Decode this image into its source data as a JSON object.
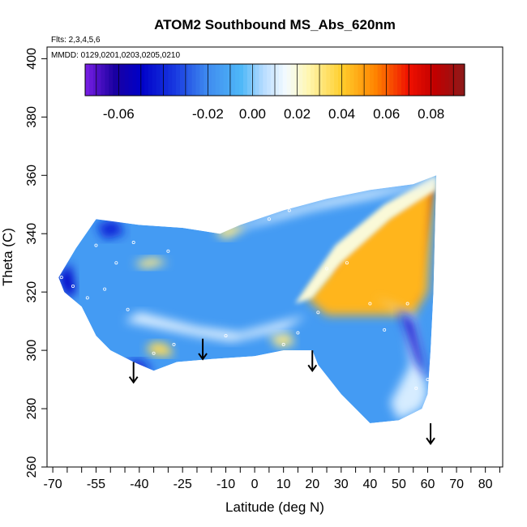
{
  "chart_data": {
    "type": "heatmap",
    "title": "ATOM2 Southbound MS_Abs_620nm",
    "flights_note": "Flts: 2,3,4,5,6",
    "dates_note": "MMDD: 0129,0201,0203,0205,0210",
    "xlabel": "Latitude (deg N)",
    "ylabel": "Theta (C)",
    "xlim": [
      -72,
      86
    ],
    "ylim": [
      260,
      404
    ],
    "x_ticks": [
      -70,
      -55,
      -40,
      -25,
      -10,
      0,
      10,
      20,
      30,
      40,
      50,
      60,
      70,
      80
    ],
    "x_tick_labels": [
      "-70",
      "-55",
      "-40",
      "-25",
      "-10",
      "0",
      "10",
      "20",
      "30",
      "40",
      "50",
      "60",
      "70",
      "80"
    ],
    "x_minor_ticks": [
      -65,
      -60,
      -50,
      -45,
      -35,
      -30,
      -20,
      -15,
      -5,
      5,
      15,
      25,
      35,
      45,
      55,
      65,
      75,
      85
    ],
    "y_ticks": [
      260,
      280,
      300,
      320,
      340,
      360,
      380,
      400
    ],
    "y_tick_labels": [
      "260",
      "280",
      "300",
      "320",
      "340",
      "360",
      "380",
      "400"
    ],
    "colorbar": {
      "range": [
        -0.075,
        0.095
      ],
      "ticks": [
        -0.06,
        -0.02,
        0.0,
        0.02,
        0.04,
        0.06,
        0.08
      ],
      "tick_labels": [
        "-0.06",
        "-0.02",
        "0.00",
        "0.02",
        "0.04",
        "0.06",
        "0.08"
      ],
      "stops": [
        {
          "v": -0.075,
          "color": "#7a1fe6"
        },
        {
          "v": -0.062,
          "color": "#1b00a0"
        },
        {
          "v": -0.05,
          "color": "#0000c8"
        },
        {
          "v": -0.035,
          "color": "#1838e0"
        },
        {
          "v": -0.02,
          "color": "#3f8cf0"
        },
        {
          "v": -0.005,
          "color": "#4fb8f8"
        },
        {
          "v": 0.005,
          "color": "#b8dcff"
        },
        {
          "v": 0.015,
          "color": "#f4fbff"
        },
        {
          "v": 0.025,
          "color": "#fff6b0"
        },
        {
          "v": 0.04,
          "color": "#ffce2c"
        },
        {
          "v": 0.055,
          "color": "#ff8400"
        },
        {
          "v": 0.07,
          "color": "#f01000"
        },
        {
          "v": 0.082,
          "color": "#c00000"
        },
        {
          "v": 0.095,
          "color": "#8c1a1a"
        }
      ]
    },
    "colors": {
      "background": "#2e86f0",
      "positive_core": "#d80000",
      "positive_edge": "#ffb000",
      "neutral": "#eaf6ff",
      "negative": "#0a10c8"
    },
    "data_region": [
      [
        -68,
        325
      ],
      [
        -65,
        330
      ],
      [
        -62,
        335
      ],
      [
        -55,
        345
      ],
      [
        -40,
        343
      ],
      [
        -25,
        342
      ],
      [
        -12,
        340
      ],
      [
        -5,
        343
      ],
      [
        10,
        348
      ],
      [
        25,
        352
      ],
      [
        40,
        355
      ],
      [
        55,
        357
      ],
      [
        63,
        360
      ],
      [
        62,
        320
      ],
      [
        61,
        300
      ],
      [
        60,
        285
      ],
      [
        58,
        280
      ],
      [
        50,
        276
      ],
      [
        40,
        275
      ],
      [
        30,
        285
      ],
      [
        22,
        295
      ],
      [
        20,
        300
      ],
      [
        10,
        300
      ],
      [
        0,
        298
      ],
      [
        -15,
        297
      ],
      [
        -27,
        296
      ],
      [
        -35,
        293
      ],
      [
        -42,
        296
      ],
      [
        -50,
        300
      ],
      [
        -55,
        305
      ],
      [
        -60,
        315
      ],
      [
        -66,
        320
      ]
    ],
    "features": [
      {
        "type": "base",
        "value": -0.015
      },
      {
        "type": "high",
        "value": 0.09,
        "polygon": [
          [
            27,
            328
          ],
          [
            45,
            343
          ],
          [
            62,
            357
          ],
          [
            58,
            330
          ],
          [
            56,
            318
          ],
          [
            50,
            315
          ],
          [
            40,
            316
          ],
          [
            30,
            318
          ]
        ]
      },
      {
        "type": "band",
        "value": 0.045,
        "polygon": [
          [
            18,
            318
          ],
          [
            30,
            333
          ],
          [
            46,
            347
          ],
          [
            62,
            357
          ],
          [
            60,
            320
          ],
          [
            55,
            312
          ],
          [
            40,
            312
          ],
          [
            25,
            312
          ]
        ]
      },
      {
        "type": "rim",
        "value": 0.02,
        "polygon": [
          [
            14,
            316
          ],
          [
            28,
            336
          ],
          [
            45,
            350
          ],
          [
            63,
            360
          ],
          [
            63,
            355
          ],
          [
            47,
            345
          ],
          [
            30,
            330
          ],
          [
            20,
            318
          ]
        ]
      },
      {
        "type": "neutral",
        "value": 0.01,
        "polygon": [
          [
            -12,
            340
          ],
          [
            -5,
            343
          ],
          [
            10,
            348
          ],
          [
            25,
            352
          ],
          [
            40,
            355
          ],
          [
            55,
            357
          ],
          [
            63,
            360
          ],
          [
            62,
            357
          ],
          [
            40,
            352
          ],
          [
            20,
            348
          ],
          [
            5,
            344
          ],
          [
            -8,
            341
          ]
        ]
      },
      {
        "type": "neutral",
        "value": 0.01,
        "polygon": [
          [
            42,
            318
          ],
          [
            55,
            312
          ],
          [
            60,
            285
          ],
          [
            58,
            280
          ],
          [
            50,
            276
          ],
          [
            47,
            282
          ],
          [
            54,
            295
          ],
          [
            52,
            312
          ]
        ]
      },
      {
        "type": "band",
        "value": 0.03,
        "polygon": [
          [
            -10,
            338
          ],
          [
            -3,
            342
          ],
          [
            -8,
            343
          ],
          [
            -14,
            341
          ]
        ]
      },
      {
        "type": "band",
        "value": 0.03,
        "polygon": [
          [
            -42,
            330
          ],
          [
            -35,
            332
          ],
          [
            -30,
            330
          ],
          [
            -38,
            328
          ]
        ]
      },
      {
        "type": "band",
        "value": 0.035,
        "polygon": [
          [
            -35,
            303
          ],
          [
            -30,
            302
          ],
          [
            -28,
            298
          ],
          [
            -34,
            298
          ],
          [
            -38,
            300
          ]
        ]
      },
      {
        "type": "band",
        "value": 0.03,
        "polygon": [
          [
            5,
            305
          ],
          [
            12,
            306
          ],
          [
            14,
            302
          ],
          [
            8,
            301
          ]
        ]
      },
      {
        "type": "neutral",
        "value": 0.012,
        "polygon": [
          [
            -45,
            310
          ],
          [
            -20,
            305
          ],
          [
            -8,
            303
          ],
          [
            10,
            307
          ],
          [
            18,
            312
          ],
          [
            10,
            310
          ],
          [
            -5,
            306
          ],
          [
            -20,
            308
          ],
          [
            -40,
            313
          ]
        ]
      },
      {
        "type": "low",
        "value": -0.05,
        "polygon": [
          [
            -68,
            325
          ],
          [
            -64,
            330
          ],
          [
            -62,
            320
          ],
          [
            -65,
            318
          ]
        ]
      },
      {
        "type": "low",
        "value": -0.045,
        "polygon": [
          [
            -45,
            296
          ],
          [
            -40,
            293
          ],
          [
            -35,
            293
          ],
          [
            -40,
            297
          ]
        ]
      },
      {
        "type": "low",
        "value": -0.045,
        "polygon": [
          [
            50,
            314
          ],
          [
            56,
            296
          ],
          [
            60,
            290
          ],
          [
            58,
            298
          ],
          [
            55,
            310
          ]
        ]
      },
      {
        "type": "low",
        "value": -0.04,
        "polygon": [
          [
            -55,
            343
          ],
          [
            -48,
            345
          ],
          [
            -45,
            340
          ],
          [
            -52,
            338
          ]
        ]
      }
    ],
    "sample_points": [
      [
        -67,
        325
      ],
      [
        -63,
        322
      ],
      [
        -58,
        318
      ],
      [
        -52,
        321
      ],
      [
        -44,
        314
      ],
      [
        -55,
        336
      ],
      [
        -42,
        337
      ],
      [
        -30,
        334
      ],
      [
        -8,
        346
      ],
      [
        5,
        345
      ],
      [
        12,
        348
      ],
      [
        25,
        328
      ],
      [
        32,
        330
      ],
      [
        40,
        316
      ],
      [
        53,
        316
      ],
      [
        45,
        307
      ],
      [
        22,
        313
      ],
      [
        15,
        306
      ],
      [
        10,
        302
      ],
      [
        -10,
        305
      ],
      [
        -28,
        302
      ],
      [
        -35,
        299
      ],
      [
        18,
        298
      ],
      [
        22,
        294
      ],
      [
        56,
        287
      ],
      [
        60,
        290
      ],
      [
        -48,
        330
      ]
    ],
    "arrows": [
      {
        "lat": -42,
        "theta_top": 296,
        "theta_bottom": 289
      },
      {
        "lat": -18,
        "theta_top": 304,
        "theta_bottom": 297
      },
      {
        "lat": 20,
        "theta_top": 300,
        "theta_bottom": 293
      },
      {
        "lat": 61,
        "theta_top": 275,
        "theta_bottom": 268
      }
    ]
  }
}
